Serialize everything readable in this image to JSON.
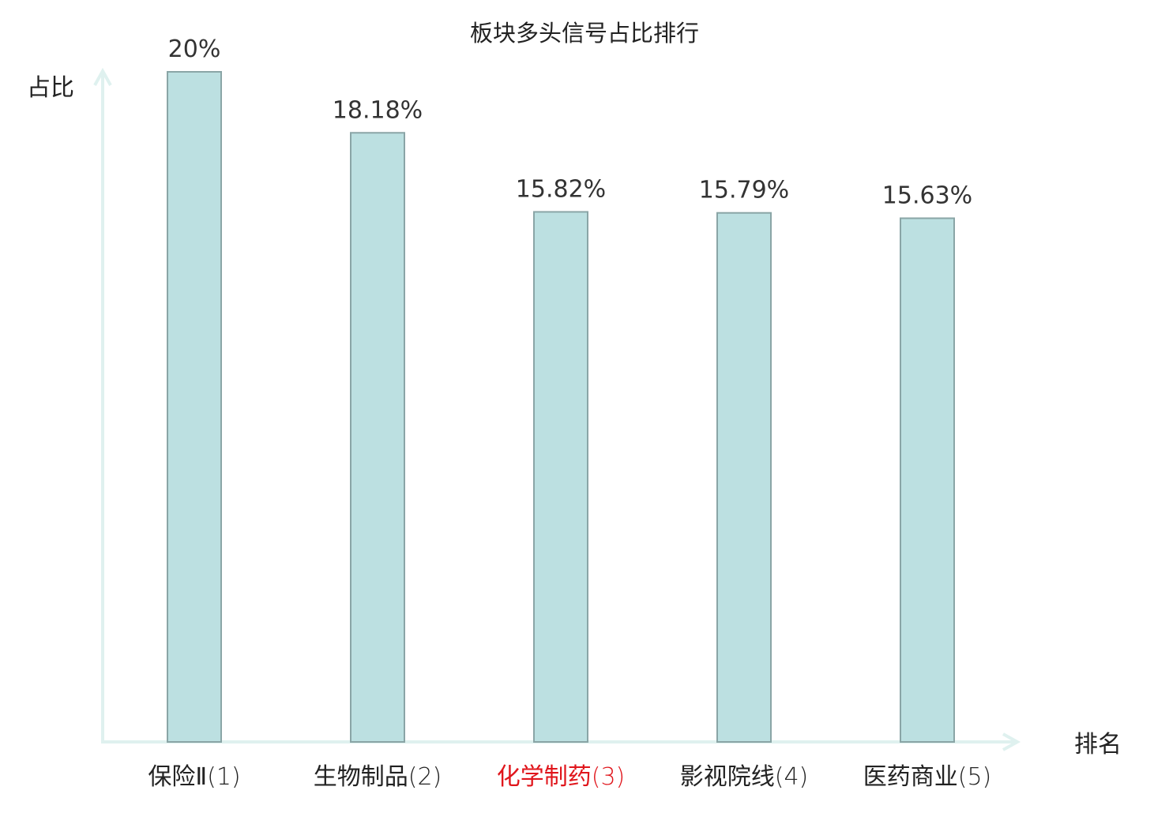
{
  "chart_data": {
    "type": "bar",
    "title": "板块多头信号占比排行",
    "ylabel": "占比",
    "xlabel": "排名",
    "ylim": [
      0,
      20
    ],
    "grid": false,
    "legend": "none",
    "categories": [
      {
        "name": "保险Ⅱ",
        "rank": "(1)",
        "highlight": false
      },
      {
        "name": "生物制品",
        "rank": "(2)",
        "highlight": false
      },
      {
        "name": "化学制药",
        "rank": "(3)",
        "highlight": true
      },
      {
        "name": "影视院线",
        "rank": "(4)",
        "highlight": false
      },
      {
        "name": "医药商业",
        "rank": "(5)",
        "highlight": false
      }
    ],
    "values": [
      20,
      18.18,
      15.82,
      15.79,
      15.63
    ],
    "value_labels": [
      "20%",
      "18.18%",
      "15.82%",
      "15.79%",
      "15.63%"
    ]
  },
  "colors": {
    "bar_fill": "#bce0e1",
    "bar_stroke": "#8aa5a6",
    "axis": "#dff1ef",
    "text": "#222222",
    "value_text": "#333333",
    "highlight": "#e0151b"
  }
}
